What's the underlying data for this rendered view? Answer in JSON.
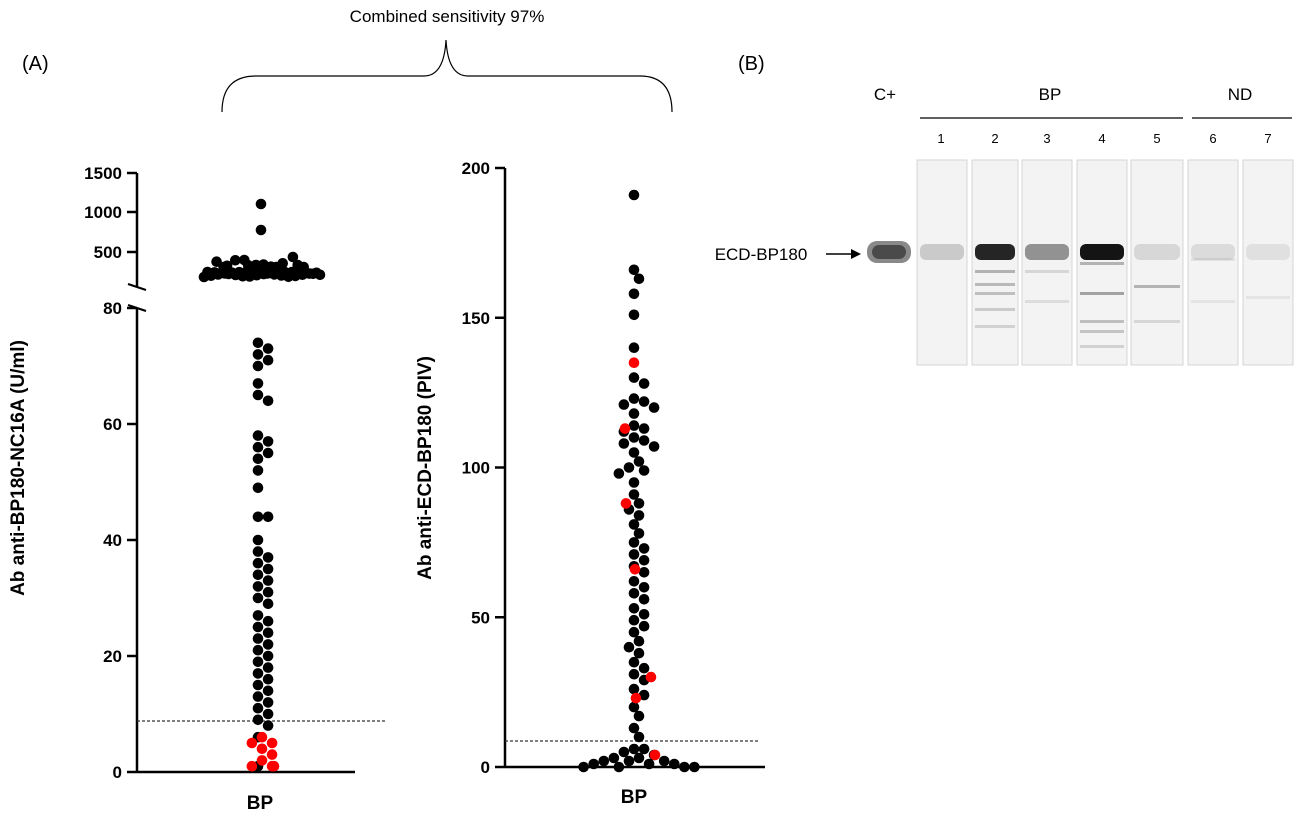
{
  "figure": {
    "bracket_label": "Combined sensitivity 97%",
    "panel_a_label": "(A)",
    "panel_b_label": "(B)"
  },
  "colors": {
    "dot": "#000000",
    "highlight_dot": "#ff0000",
    "band_dark": "#1e1e1e",
    "band_light": "#bdbdbd",
    "strip": "#f3f3f3"
  },
  "chart_data": [
    {
      "type": "scatter",
      "title": "",
      "xlabel": "BP",
      "ylabel": "Ab anti-BP180-NC16A (U/ml)",
      "category": "BP",
      "cutoff": 9,
      "axis": {
        "lower_range": [
          0,
          80
        ],
        "lower_ticks": [
          "0",
          "20",
          "40",
          "60",
          "80"
        ],
        "upper_ticks": [
          "500",
          "1000",
          "1500"
        ],
        "broken": true
      },
      "values_lower": [
        74,
        73,
        72,
        71,
        70,
        67,
        65,
        64,
        58,
        57,
        56,
        55,
        54,
        52,
        49,
        44,
        44,
        40,
        38,
        37,
        36,
        35,
        34,
        33,
        32,
        31,
        30,
        29,
        27,
        26,
        25,
        24,
        23,
        22,
        21,
        20,
        19,
        18,
        17,
        16,
        15,
        14,
        13,
        12,
        11,
        10,
        9,
        8,
        6,
        1
      ],
      "highlight_values_lower": [
        6,
        5,
        5,
        4,
        3,
        2,
        1,
        1,
        1
      ],
      "values_upper_cluster_count": 34,
      "values_upper_high": [
        400,
        300,
        350,
        380,
        420,
        320,
        360,
        330,
        340,
        300,
        380,
        420,
        360,
        300
      ],
      "values_upper_extreme": [
        1100,
        700
      ]
    },
    {
      "type": "scatter",
      "title": "",
      "xlabel": "BP",
      "ylabel": "Ab anti-ECD-BP180 (PIV)",
      "category": "BP",
      "cutoff": 8,
      "ylim": [
        0,
        200
      ],
      "yticks": [
        "0",
        "50",
        "100",
        "150",
        "200"
      ],
      "values": [
        191,
        166,
        163,
        158,
        151,
        140,
        130,
        128,
        123,
        122,
        121,
        120,
        118,
        114,
        113,
        112,
        110,
        109,
        108,
        107,
        105,
        102,
        100,
        99,
        98,
        95,
        91,
        88,
        86,
        84,
        81,
        78,
        75,
        73,
        71,
        69,
        67,
        65,
        62,
        60,
        58,
        56,
        53,
        51,
        49,
        47,
        45,
        42,
        40,
        38,
        35,
        33,
        31,
        29,
        26,
        24,
        20,
        17,
        13,
        10,
        6,
        3,
        2,
        1,
        0,
        0,
        1,
        2,
        3,
        5,
        6,
        4,
        2,
        1,
        0,
        0
      ],
      "highlight_values": [
        135,
        113,
        88,
        66,
        30,
        23,
        4
      ]
    }
  ],
  "western_blot": {
    "positive_control_label": "C+",
    "group_bp_label": "BP",
    "group_nd_label": "ND",
    "lane_numbers": [
      "1",
      "2",
      "3",
      "4",
      "5",
      "6",
      "7"
    ],
    "marker_label": "ECD-BP180",
    "band_intensity": [
      0.25,
      0.95,
      0.55,
      1.0,
      0.15,
      0.12,
      0.08
    ]
  }
}
